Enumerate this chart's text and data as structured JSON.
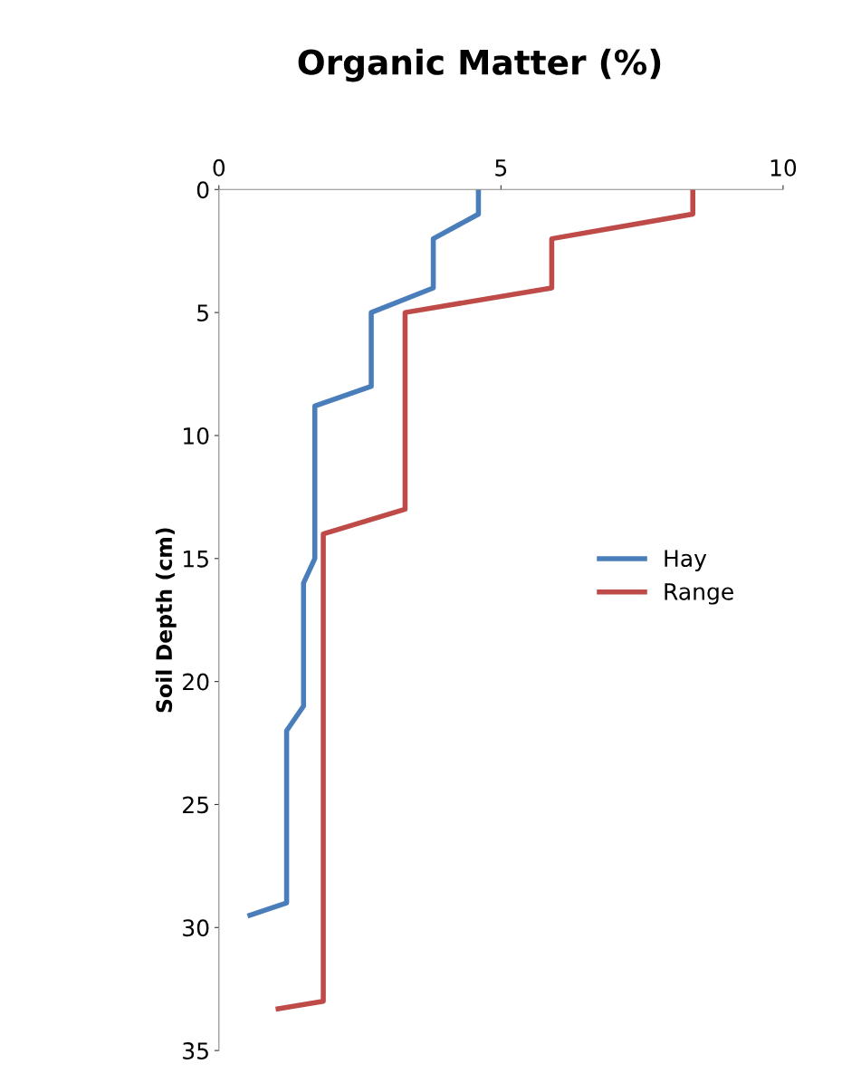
{
  "chart_data": {
    "type": "line",
    "title": "Organic Matter (%)",
    "ylabel": "Soil Depth (cm)",
    "xlim": [
      0,
      10
    ],
    "xticks": [
      0,
      5,
      10
    ],
    "ylim": [
      35,
      0
    ],
    "yticks": [
      0,
      5,
      10,
      15,
      20,
      25,
      30,
      35
    ],
    "grid": false,
    "legend": "right",
    "marker": "none",
    "line_style": "solid",
    "series": [
      {
        "name": "Hay",
        "color": "#4a7ebb",
        "x": [
          4.6,
          4.6,
          3.8,
          3.8,
          2.7,
          2.7,
          1.7,
          1.7,
          1.5,
          1.5,
          1.2,
          1.2,
          0.55
        ],
        "values": [
          0,
          1,
          2,
          4,
          5,
          8,
          8.8,
          15,
          16,
          21,
          22,
          29,
          29.5
        ]
      },
      {
        "name": "Range",
        "color": "#be4b48",
        "x": [
          8.4,
          8.4,
          5.9,
          5.9,
          3.3,
          3.3,
          1.85,
          1.85,
          1.05
        ],
        "values": [
          0,
          1,
          2,
          4,
          5,
          13,
          14,
          33,
          33.3
        ]
      }
    ]
  }
}
